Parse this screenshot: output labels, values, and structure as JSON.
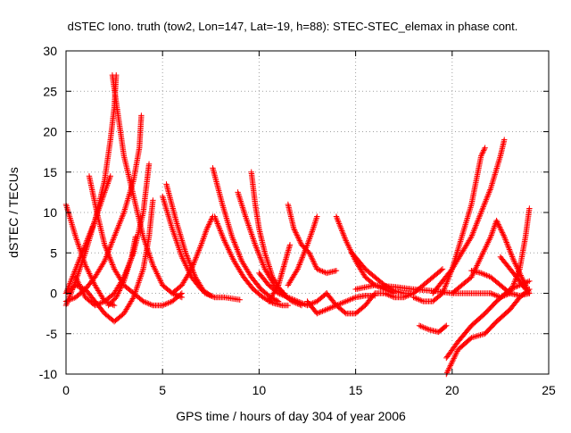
{
  "chart_data": {
    "type": "scatter",
    "title": "dSTEC Iono. truth (tow2, Lon=147, Lat=-19, h=88): STEC-STEC_elemax in phase cont.",
    "xlabel": "GPS time / hours of day 304 of year 2006",
    "ylabel": "dSTEC  / TECUs",
    "xlim": [
      0,
      25
    ],
    "ylim": [
      -10,
      30
    ],
    "xticks": [
      0,
      5,
      10,
      15,
      20,
      25
    ],
    "yticks": [
      -10,
      -5,
      0,
      5,
      10,
      15,
      20,
      25,
      30
    ],
    "grid": true,
    "marker": "+",
    "color": "#ff0000",
    "series": [
      {
        "points": [
          [
            0.0,
            11.0
          ],
          [
            0.5,
            7.0
          ],
          [
            1.0,
            3.5
          ],
          [
            1.5,
            1.0
          ],
          [
            2.0,
            -1.0
          ],
          [
            2.5,
            -1.5
          ]
        ]
      },
      {
        "points": [
          [
            0.0,
            -1.5
          ],
          [
            0.5,
            1.5
          ],
          [
            1.0,
            5.0
          ],
          [
            1.5,
            9.0
          ],
          [
            2.0,
            14.0
          ],
          [
            2.3,
            19.0
          ],
          [
            2.5,
            23.0
          ],
          [
            2.6,
            27.0
          ]
        ]
      },
      {
        "points": [
          [
            2.4,
            27.0
          ],
          [
            2.7,
            22.0
          ],
          [
            3.0,
            17.0
          ],
          [
            3.5,
            12.0
          ],
          [
            4.0,
            7.0
          ],
          [
            4.5,
            3.5
          ],
          [
            5.0,
            1.0
          ],
          [
            5.5,
            0.0
          ],
          [
            6.0,
            -0.5
          ]
        ]
      },
      {
        "points": [
          [
            0.0,
            -1.0
          ],
          [
            0.5,
            -0.5
          ],
          [
            1.0,
            0.5
          ],
          [
            1.5,
            2.0
          ],
          [
            2.0,
            4.0
          ],
          [
            2.5,
            7.0
          ],
          [
            3.0,
            10.0
          ],
          [
            3.5,
            14.0
          ],
          [
            3.8,
            18.0
          ],
          [
            3.9,
            22.0
          ]
        ]
      },
      {
        "points": [
          [
            0.0,
            0.0
          ],
          [
            0.5,
            1.0
          ],
          [
            1.0,
            0.5
          ],
          [
            1.5,
            -1.0
          ],
          [
            2.0,
            -2.5
          ],
          [
            2.5,
            -3.5
          ],
          [
            3.0,
            -2.5
          ],
          [
            3.5,
            -0.5
          ],
          [
            4.0,
            3.0
          ],
          [
            4.3,
            7.0
          ],
          [
            4.5,
            11.5
          ]
        ]
      },
      {
        "points": [
          [
            1.2,
            14.5
          ],
          [
            1.6,
            10.0
          ],
          [
            2.0,
            6.0
          ],
          [
            2.5,
            3.0
          ],
          [
            3.0,
            1.0
          ],
          [
            3.5,
            0.0
          ],
          [
            4.0,
            -1.0
          ],
          [
            4.5,
            -1.5
          ],
          [
            5.0,
            -1.5
          ],
          [
            5.5,
            -1.0
          ],
          [
            6.0,
            0.0
          ]
        ]
      },
      {
        "points": [
          [
            0.0,
            0.0
          ],
          [
            0.5,
            3.0
          ],
          [
            1.0,
            6.0
          ],
          [
            1.5,
            9.0
          ],
          [
            2.0,
            12.5
          ],
          [
            2.3,
            14.5
          ]
        ]
      },
      {
        "points": [
          [
            0.5,
            2.0
          ],
          [
            1.0,
            -0.5
          ],
          [
            1.5,
            -1.5
          ],
          [
            2.0,
            -1.0
          ],
          [
            2.5,
            0.0
          ],
          [
            3.0,
            2.0
          ],
          [
            3.5,
            5.0
          ],
          [
            4.0,
            10.0
          ],
          [
            4.2,
            14.0
          ],
          [
            4.3,
            16.0
          ]
        ]
      },
      {
        "points": [
          [
            5.2,
            13.5
          ],
          [
            5.7,
            9.0
          ],
          [
            6.2,
            5.0
          ],
          [
            6.7,
            2.0
          ],
          [
            7.2,
            0.0
          ],
          [
            7.7,
            -0.5
          ],
          [
            8.2,
            -0.5
          ],
          [
            9.0,
            -0.8
          ]
        ]
      },
      {
        "points": [
          [
            5.0,
            12.0
          ],
          [
            5.5,
            8.0
          ],
          [
            6.0,
            4.5
          ],
          [
            6.5,
            2.0
          ],
          [
            7.0,
            0.5
          ],
          [
            7.5,
            -0.3
          ]
        ]
      },
      {
        "points": [
          [
            7.6,
            15.5
          ],
          [
            8.1,
            11.0
          ],
          [
            8.6,
            7.0
          ],
          [
            9.1,
            4.0
          ],
          [
            9.6,
            2.0
          ],
          [
            10.1,
            0.5
          ],
          [
            10.6,
            -0.5
          ],
          [
            11.0,
            -1.0
          ]
        ]
      },
      {
        "points": [
          [
            5.5,
            0.0
          ],
          [
            6.0,
            1.0
          ],
          [
            6.5,
            3.0
          ],
          [
            7.0,
            6.0
          ],
          [
            7.3,
            8.0
          ],
          [
            7.6,
            9.5
          ]
        ]
      },
      {
        "points": [
          [
            7.7,
            9.5
          ],
          [
            8.2,
            6.5
          ],
          [
            8.7,
            4.0
          ],
          [
            9.2,
            2.0
          ],
          [
            9.7,
            0.5
          ],
          [
            10.2,
            -0.5
          ],
          [
            10.7,
            -1.2
          ],
          [
            11.2,
            -1.5
          ],
          [
            11.5,
            -1.5
          ]
        ]
      },
      {
        "points": [
          [
            9.6,
            15.0
          ],
          [
            9.8,
            11.0
          ],
          [
            10.0,
            8.0
          ],
          [
            10.3,
            5.0
          ],
          [
            10.7,
            2.0
          ],
          [
            11.2,
            0.0
          ],
          [
            11.7,
            -1.0
          ],
          [
            12.2,
            -1.5
          ]
        ]
      },
      {
        "points": [
          [
            8.9,
            12.5
          ],
          [
            9.3,
            9.5
          ],
          [
            9.8,
            6.0
          ],
          [
            10.3,
            3.0
          ],
          [
            10.8,
            1.0
          ],
          [
            11.3,
            0.0
          ]
        ]
      },
      {
        "points": [
          [
            10.5,
            -1.0
          ],
          [
            11.0,
            1.0
          ],
          [
            11.3,
            3.5
          ],
          [
            11.6,
            6.0
          ]
        ]
      },
      {
        "points": [
          [
            11.5,
            11.0
          ],
          [
            11.8,
            8.0
          ],
          [
            12.2,
            6.0
          ],
          [
            12.6,
            5.0
          ],
          [
            13.0,
            3.0
          ],
          [
            13.5,
            2.5
          ],
          [
            14.0,
            2.8
          ]
        ]
      },
      {
        "points": [
          [
            11.5,
            1.0
          ],
          [
            12.0,
            3.0
          ],
          [
            12.5,
            6.0
          ],
          [
            12.8,
            8.0
          ],
          [
            13.0,
            9.5
          ]
        ]
      },
      {
        "points": [
          [
            10.0,
            2.5
          ],
          [
            10.5,
            1.0
          ],
          [
            11.0,
            0.0
          ],
          [
            11.5,
            -0.5
          ],
          [
            12.0,
            -1.0
          ],
          [
            12.5,
            -1.5
          ],
          [
            13.0,
            -1.0
          ],
          [
            13.5,
            0.0
          ]
        ]
      },
      {
        "points": [
          [
            12.5,
            -1.0
          ],
          [
            13.0,
            -2.5
          ],
          [
            13.5,
            -2.0
          ],
          [
            14.0,
            -1.5
          ],
          [
            14.5,
            -1.0
          ],
          [
            15.0,
            -0.5
          ],
          [
            15.5,
            -0.3
          ],
          [
            16.0,
            -0.3
          ]
        ]
      },
      {
        "points": [
          [
            14.0,
            9.5
          ],
          [
            14.5,
            6.5
          ],
          [
            15.0,
            4.0
          ],
          [
            15.5,
            2.0
          ],
          [
            16.0,
            1.0
          ],
          [
            16.5,
            0.5
          ],
          [
            17.0,
            0.0
          ]
        ]
      },
      {
        "points": [
          [
            13.5,
            0.0
          ],
          [
            14.0,
            -1.5
          ],
          [
            14.5,
            -2.5
          ],
          [
            15.0,
            -2.5
          ],
          [
            15.5,
            -1.5
          ],
          [
            16.0,
            0.0
          ],
          [
            16.5,
            0.0
          ],
          [
            17.0,
            -0.5
          ],
          [
            17.5,
            -0.5
          ],
          [
            18.0,
            0.0
          ],
          [
            18.5,
            1.0
          ],
          [
            19.0,
            2.0
          ],
          [
            19.5,
            3.0
          ]
        ]
      },
      {
        "points": [
          [
            14.8,
            5.0
          ],
          [
            15.5,
            3.0
          ],
          [
            16.0,
            2.0
          ],
          [
            16.5,
            1.0
          ],
          [
            17.0,
            0.3
          ],
          [
            17.5,
            0.0
          ],
          [
            18.0,
            0.0
          ]
        ]
      },
      {
        "points": [
          [
            15.0,
            0.5
          ],
          [
            16.0,
            1.0
          ],
          [
            17.0,
            0.8
          ],
          [
            18.0,
            0.5
          ],
          [
            19.0,
            0.3
          ],
          [
            20.0,
            0.0
          ],
          [
            21.0,
            0.0
          ],
          [
            22.0,
            0.0
          ]
        ]
      },
      {
        "points": [
          [
            18.0,
            -0.5
          ],
          [
            18.5,
            -1.0
          ],
          [
            19.0,
            -1.0
          ],
          [
            19.5,
            0.0
          ],
          [
            20.0,
            3.0
          ],
          [
            20.5,
            7.0
          ],
          [
            21.0,
            11.0
          ],
          [
            21.5,
            17.0
          ],
          [
            21.7,
            18.0
          ]
        ]
      },
      {
        "points": [
          [
            19.0,
            0.0
          ],
          [
            19.5,
            1.5
          ],
          [
            20.0,
            3.0
          ],
          [
            20.5,
            5.0
          ],
          [
            21.0,
            7.0
          ],
          [
            21.5,
            10.0
          ],
          [
            22.0,
            13.0
          ],
          [
            22.5,
            17.0
          ],
          [
            22.7,
            19.0
          ]
        ]
      },
      {
        "points": [
          [
            18.3,
            -4.0
          ],
          [
            18.8,
            -4.5
          ],
          [
            19.3,
            -4.8
          ],
          [
            19.7,
            -4.0
          ]
        ]
      },
      {
        "points": [
          [
            19.7,
            -8.0
          ],
          [
            20.3,
            -6.0
          ],
          [
            21.0,
            -4.0
          ],
          [
            21.7,
            -2.5
          ],
          [
            22.3,
            -1.0
          ],
          [
            23.0,
            0.5
          ],
          [
            23.5,
            1.0
          ],
          [
            24.0,
            1.5
          ]
        ]
      },
      {
        "points": [
          [
            19.7,
            -10.0
          ],
          [
            20.3,
            -7.0
          ],
          [
            21.0,
            -5.5
          ],
          [
            21.7,
            -5.0
          ],
          [
            22.3,
            -3.5
          ],
          [
            23.0,
            -2.0
          ],
          [
            23.5,
            -0.5
          ],
          [
            24.0,
            0.5
          ]
        ]
      },
      {
        "points": [
          [
            21.0,
            2.8
          ],
          [
            21.5,
            2.5
          ],
          [
            22.0,
            2.0
          ],
          [
            22.5,
            1.0
          ],
          [
            23.0,
            0.0
          ],
          [
            23.5,
            -0.3
          ],
          [
            24.0,
            0.0
          ]
        ]
      },
      {
        "points": [
          [
            20.0,
            0.0
          ],
          [
            21.0,
            2.0
          ],
          [
            21.5,
            4.5
          ],
          [
            22.0,
            7.0
          ],
          [
            22.3,
            9.0
          ],
          [
            22.7,
            7.0
          ],
          [
            23.2,
            4.0
          ],
          [
            23.7,
            1.5
          ],
          [
            24.0,
            0.0
          ]
        ]
      },
      {
        "points": [
          [
            22.5,
            4.5
          ],
          [
            23.0,
            3.0
          ],
          [
            23.5,
            1.5
          ],
          [
            23.8,
            0.5
          ]
        ]
      },
      {
        "points": [
          [
            22.0,
            0.0
          ],
          [
            22.5,
            -0.5
          ],
          [
            23.0,
            0.0
          ],
          [
            23.5,
            3.0
          ],
          [
            23.8,
            7.0
          ],
          [
            24.0,
            10.5
          ]
        ]
      },
      {
        "points": [
          [
            2.2,
            -1.5
          ],
          [
            2.6,
            -0.5
          ],
          [
            3.0,
            1.5
          ],
          [
            3.4,
            4.5
          ],
          [
            3.6,
            7.0
          ]
        ]
      }
    ]
  }
}
